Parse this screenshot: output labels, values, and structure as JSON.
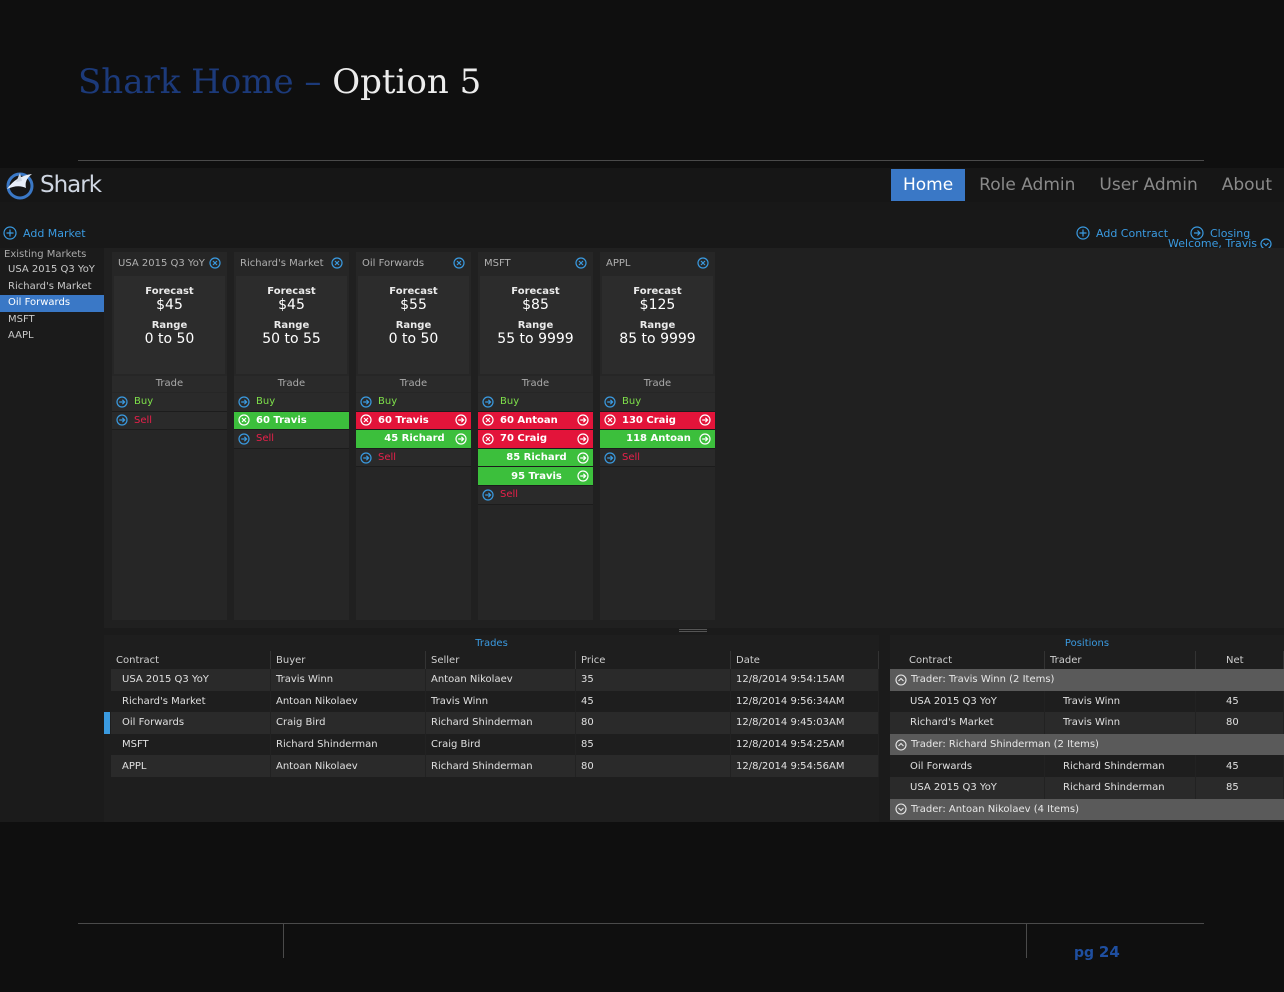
{
  "slide": {
    "title_part1": "Shark Home –",
    "title_part2": "Option 5",
    "page_label": "pg",
    "page_number": "24"
  },
  "app": {
    "logo_text": "Shark",
    "nav": [
      "Home",
      "Role Admin",
      "User Admin",
      "About"
    ],
    "active_nav": "Home",
    "welcome": "Welcome, Travis",
    "add_market": "Add Market",
    "add_contract": "Add Contract",
    "closing": "Closing"
  },
  "sidebar": {
    "header": "Existing Markets",
    "items": [
      "USA 2015 Q3 YoY",
      "Richard's Market",
      "Oil Forwards",
      "MSFT",
      "AAPL"
    ],
    "active": "Oil Forwards"
  },
  "markets": [
    {
      "name": "USA 2015 Q3 YoY",
      "forecast_label": "Forecast",
      "forecast": "$45",
      "range_label": "Range",
      "range": "0 to 50",
      "trade_label": "Trade",
      "buy_label": "Buy",
      "sell_label": "Sell",
      "orders": []
    },
    {
      "name": "Richard's Market",
      "forecast_label": "Forecast",
      "forecast": "$45",
      "range_label": "Range",
      "range": "50 to 55",
      "trade_label": "Trade",
      "buy_label": "Buy",
      "sell_label": "Sell",
      "orders": [
        {
          "side": "buy",
          "text": "60 Travis"
        }
      ]
    },
    {
      "name": "Oil Forwards",
      "forecast_label": "Forecast",
      "forecast": "$55",
      "range_label": "Range",
      "range": "0 to 50",
      "trade_label": "Trade",
      "buy_label": "Buy",
      "sell_label": "Sell",
      "orders": [
        {
          "side": "sell",
          "text": "60 Travis"
        },
        {
          "side": "buy",
          "text": "45 Richard"
        }
      ]
    },
    {
      "name": "MSFT",
      "forecast_label": "Forecast",
      "forecast": "$85",
      "range_label": "Range",
      "range": "55 to 9999",
      "trade_label": "Trade",
      "buy_label": "Buy",
      "sell_label": "Sell",
      "orders": [
        {
          "side": "sell",
          "text": "60 Antoan"
        },
        {
          "side": "sell",
          "text": "70 Craig"
        },
        {
          "side": "buy",
          "text": "85 Richard"
        },
        {
          "side": "buy",
          "text": "95 Travis"
        }
      ]
    },
    {
      "name": "APPL",
      "forecast_label": "Forecast",
      "forecast": "$125",
      "range_label": "Range",
      "range": "85 to 9999",
      "trade_label": "Trade",
      "buy_label": "Buy",
      "sell_label": "Sell",
      "orders": [
        {
          "side": "sell",
          "text": "130 Craig"
        },
        {
          "side": "buy",
          "text": "118 Antoan"
        }
      ]
    }
  ],
  "trades": {
    "title": "Trades",
    "columns": [
      "Contract",
      "Buyer",
      "Seller",
      "Price",
      "Date"
    ],
    "rows": [
      [
        "USA 2015 Q3 YoY",
        "Travis Winn",
        "Antoan Nikolaev",
        "35",
        "12/8/2014 9:54:15AM"
      ],
      [
        "Richard's Market",
        "Antoan Nikolaev",
        "Travis Winn",
        "45",
        "12/8/2014 9:56:34AM"
      ],
      [
        "Oil Forwards",
        "Craig Bird",
        "Richard Shinderman",
        "80",
        "12/8/2014 9:45:03AM"
      ],
      [
        "MSFT",
        "Richard Shinderman",
        "Craig Bird",
        "85",
        "12/8/2014 9:54:25AM"
      ],
      [
        "APPL",
        "Antoan Nikolaev",
        "Richard Shinderman",
        "80",
        "12/8/2014 9:54:56AM"
      ]
    ],
    "selected_row": 2
  },
  "positions": {
    "title": "Positions",
    "columns": [
      "Contract",
      "Trader",
      "Net"
    ],
    "groups": [
      {
        "label": "Trader: Travis Winn (2 Items)",
        "expanded": true,
        "rows": [
          [
            "USA 2015 Q3 YoY",
            "Travis Winn",
            "45"
          ],
          [
            "Richard's Market",
            "Travis Winn",
            "80"
          ]
        ]
      },
      {
        "label": "Trader: Richard Shinderman (2 Items)",
        "expanded": true,
        "rows": [
          [
            "Oil Forwards",
            "Richard Shinderman",
            "45"
          ],
          [
            "USA 2015 Q3 YoY",
            "Richard Shinderman",
            "85"
          ]
        ]
      },
      {
        "label": "Trader: Antoan Nikolaev  (4 Items)",
        "expanded": false,
        "rows": []
      }
    ]
  },
  "colors": {
    "accent": "#3a78c6",
    "link": "#3a9ae0",
    "buy_green": "#3cbf3c",
    "sell_red": "#e3143a"
  }
}
